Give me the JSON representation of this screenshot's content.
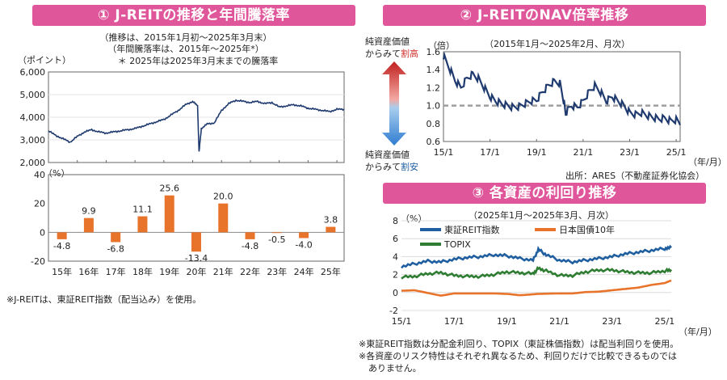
{
  "panel1": {
    "title": "① J-REITの推移と年間騰落率",
    "subtitle1": "（推移は、2015年1月初～2025年3月末）",
    "subtitle2": "（年間騰落率は、2015年～2025年*）",
    "subtitle3": "＊ 2025年は2025年3月末までの騰落率",
    "unit_top": "（ポイント）",
    "unit_bottom": "（%）",
    "footnote": "※J-REITは、東証REIT指数（配当込み）を使用。"
  },
  "panel2": {
    "title": "② J-REITのNAV倍率推移",
    "subtitle": "（2015年1月～2025年2月、月次）",
    "unit": "（倍）",
    "x_unit": "（年/月）",
    "high_label_line1": "純資産価値",
    "high_label_line2_prefix": "からみて",
    "high_label_line2_em": "割高",
    "low_label_line1": "純資産価値",
    "low_label_line2_prefix": "からみて",
    "low_label_line2_em": "割安",
    "source": "出所：ARES（不動産証券化協会）"
  },
  "panel3": {
    "title": "③ 各資産の利回り推移",
    "subtitle": "（2025年1月～2025年3月、月次）",
    "unit": "（%）",
    "x_unit": "（年/月）",
    "note1": "※東証REIT指数は分配金利回り、TOPIX（東証株価指数）は配当利回りを使用。",
    "note2": "※各資産のリスク特性はそれぞれ異なるため、利回りだけで比較できるものでは",
    "note3": "ありません。"
  },
  "colors": {
    "banner": "#e0569a",
    "navy": "#1f3a6e",
    "orange": "#e8732a",
    "green": "#2e7d32",
    "blue": "#1f5fa0",
    "red": "#d0312d",
    "ref": "#9e9e9e"
  },
  "chart_data": [
    {
      "type": "line",
      "title": "J-REITの推移",
      "ylabel": "（ポイント）",
      "ylim": [
        2000,
        6000
      ],
      "yticks": [
        "2,000",
        "3,000",
        "4,000",
        "5,000",
        "6,000"
      ],
      "x": [
        2015.0,
        2015.25,
        2015.5,
        2015.75,
        2016.0,
        2016.25,
        2016.5,
        2016.75,
        2017.0,
        2017.25,
        2017.5,
        2017.75,
        2018.0,
        2018.25,
        2018.5,
        2018.75,
        2019.0,
        2019.25,
        2019.5,
        2019.75,
        2020.0,
        2020.17,
        2020.22,
        2020.3,
        2020.5,
        2020.75,
        2021.0,
        2021.25,
        2021.5,
        2021.75,
        2022.0,
        2022.25,
        2022.5,
        2022.75,
        2023.0,
        2023.25,
        2023.5,
        2023.75,
        2024.0,
        2024.25,
        2024.5,
        2024.75,
        2025.0,
        2025.25
      ],
      "series": [
        {
          "name": "J-REIT",
          "values": [
            3400,
            3200,
            3050,
            2900,
            3150,
            3350,
            3450,
            3350,
            3300,
            3350,
            3400,
            3450,
            3500,
            3600,
            3700,
            3800,
            3900,
            4100,
            4300,
            4550,
            4700,
            4500,
            2450,
            3500,
            3700,
            3750,
            4300,
            4600,
            4750,
            4700,
            4650,
            4700,
            4600,
            4650,
            4450,
            4500,
            4550,
            4500,
            4400,
            4350,
            4300,
            4250,
            4350,
            4350
          ]
        }
      ]
    },
    {
      "type": "bar",
      "title": "年間騰落率",
      "ylabel": "（%）",
      "ylim": [
        -20,
        40
      ],
      "categories": [
        "15年",
        "16年",
        "17年",
        "18年",
        "19年",
        "20年",
        "21年",
        "22年",
        "23年",
        "24年",
        "25年"
      ],
      "values": [
        -4.8,
        9.9,
        -6.8,
        11.1,
        25.6,
        -13.4,
        20.0,
        -4.8,
        -0.5,
        -4.0,
        3.8
      ],
      "data_labels": [
        "-4.8",
        "9.9",
        "-6.8",
        "11.1",
        "25.6",
        "-13.4",
        "20.0",
        "-4.8",
        "-0.5",
        "-4.0",
        "3.8"
      ]
    },
    {
      "type": "line",
      "title": "J-REITのNAV倍率推移",
      "ylabel": "（倍）",
      "ylim": [
        0.6,
        1.6
      ],
      "yticks": [
        "0.6",
        "0.8",
        "1.0",
        "1.2",
        "1.4",
        "1.6"
      ],
      "xticks": [
        "15/1",
        "17/1",
        "19/1",
        "21/1",
        "23/1",
        "25/1"
      ],
      "reference_line": 1.0,
      "x": [
        2015.0,
        2015.25,
        2015.5,
        2015.75,
        2016.0,
        2016.25,
        2016.5,
        2016.75,
        2017.0,
        2017.25,
        2017.5,
        2017.75,
        2018.0,
        2018.25,
        2018.5,
        2018.75,
        2019.0,
        2019.25,
        2019.5,
        2019.75,
        2020.0,
        2020.17,
        2020.25,
        2020.5,
        2020.75,
        2021.0,
        2021.25,
        2021.5,
        2021.75,
        2022.0,
        2022.25,
        2022.5,
        2022.75,
        2023.0,
        2023.25,
        2023.5,
        2023.75,
        2024.0,
        2024.25,
        2024.5,
        2024.75,
        2025.0,
        2025.17
      ],
      "series": [
        {
          "name": "NAV倍率",
          "values": [
            1.55,
            1.42,
            1.28,
            1.2,
            1.3,
            1.35,
            1.3,
            1.2,
            1.1,
            1.05,
            1.02,
            1.0,
            0.98,
            0.99,
            1.02,
            1.05,
            1.06,
            1.15,
            1.22,
            1.27,
            1.25,
            1.05,
            0.92,
            1.0,
            0.98,
            1.05,
            1.15,
            1.22,
            1.15,
            1.05,
            1.1,
            1.05,
            1.0,
            0.92,
            0.9,
            0.92,
            0.89,
            0.87,
            0.85,
            0.86,
            0.83,
            0.84,
            0.82
          ]
        }
      ]
    },
    {
      "type": "line",
      "title": "各資産の利回り推移",
      "ylabel": "（%）",
      "ylim": [
        -2,
        8
      ],
      "yticks": [
        "-2",
        "0",
        "2",
        "4",
        "6",
        "8"
      ],
      "xticks": [
        "15/1",
        "17/1",
        "19/1",
        "21/1",
        "23/1",
        "25/1"
      ],
      "x": [
        2015.0,
        2015.5,
        2016.0,
        2016.5,
        2017.0,
        2017.5,
        2018.0,
        2018.5,
        2019.0,
        2019.5,
        2020.0,
        2020.2,
        2020.5,
        2021.0,
        2021.5,
        2022.0,
        2022.5,
        2023.0,
        2023.5,
        2024.0,
        2024.5,
        2025.0,
        2025.25
      ],
      "series": [
        {
          "name": "東証REIT指数",
          "values": [
            2.9,
            3.2,
            3.5,
            3.4,
            3.7,
            3.9,
            4.0,
            4.2,
            4.1,
            3.8,
            3.6,
            4.8,
            4.2,
            3.6,
            3.4,
            3.6,
            3.8,
            4.0,
            4.3,
            4.5,
            4.7,
            4.9,
            5.0
          ]
        },
        {
          "name": "日本国債10年",
          "values": [
            0.35,
            0.4,
            0.1,
            -0.2,
            0.05,
            0.05,
            0.05,
            0.05,
            0.0,
            -0.15,
            -0.05,
            0.0,
            0.02,
            0.05,
            0.05,
            0.2,
            0.25,
            0.4,
            0.55,
            0.7,
            1.0,
            1.2,
            1.5
          ]
        },
        {
          "name": "TOPIX",
          "values": [
            1.7,
            1.8,
            2.1,
            2.2,
            1.9,
            1.8,
            1.8,
            2.0,
            2.3,
            2.2,
            2.1,
            2.7,
            2.4,
            1.9,
            1.9,
            2.3,
            2.5,
            2.5,
            2.3,
            2.2,
            2.2,
            2.4,
            2.5
          ]
        }
      ]
    }
  ]
}
